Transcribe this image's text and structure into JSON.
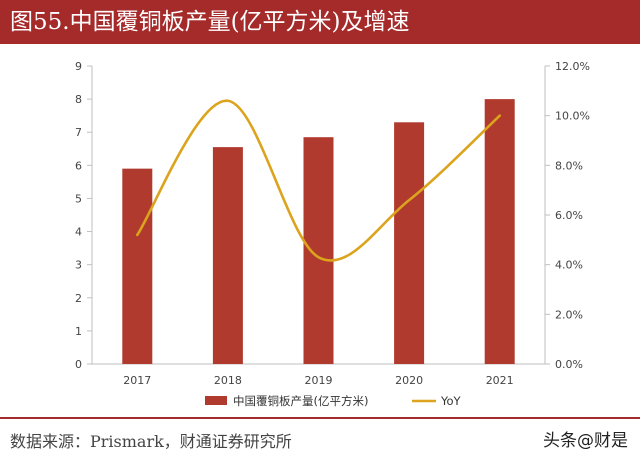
{
  "header": {
    "title": "图55.中国覆铜板产量(亿平方米)及增速"
  },
  "chart_data": {
    "type": "bar+line",
    "categories": [
      "2017",
      "2018",
      "2019",
      "2020",
      "2021"
    ],
    "series": [
      {
        "name": "中国覆铜板产量(亿平方米)",
        "type": "bar",
        "axis": "left",
        "values": [
          5.9,
          6.55,
          6.85,
          7.3,
          8.0
        ]
      },
      {
        "name": "YoY",
        "type": "line",
        "axis": "right",
        "smooth": true,
        "values": [
          0.052,
          0.106,
          0.043,
          0.066,
          0.1
        ]
      }
    ],
    "left_axis": {
      "min": 0,
      "max": 9,
      "ticks": [
        "0",
        "1",
        "2",
        "3",
        "4",
        "5",
        "6",
        "7",
        "8",
        "9"
      ]
    },
    "right_axis": {
      "min": 0,
      "max": 0.12,
      "ticks": [
        "0.0%",
        "2.0%",
        "4.0%",
        "6.0%",
        "8.0%",
        "10.0%",
        "12.0%"
      ]
    },
    "grid": false,
    "legend_position": "bottom",
    "colors": {
      "bar": "#b03a2e",
      "line": "#dca31c"
    }
  },
  "footer": {
    "source": "数据来源：Prismark，财通证券研究所",
    "watermark": "头条@财是"
  }
}
